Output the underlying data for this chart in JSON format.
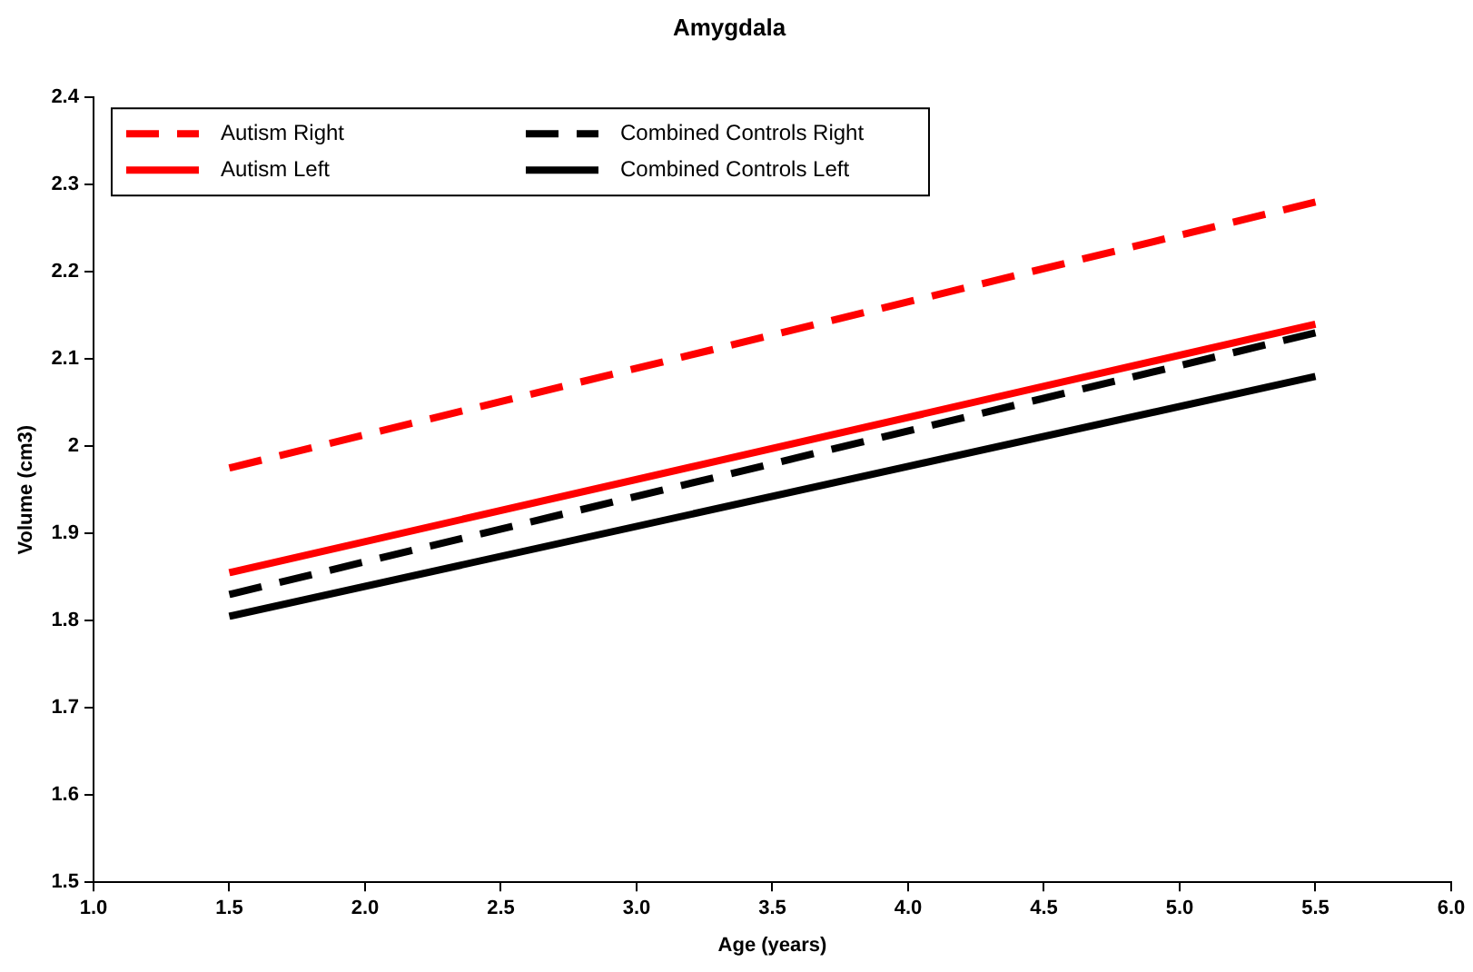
{
  "chart_data": {
    "type": "line",
    "title": "Amygdala",
    "xlabel": "Age (years)",
    "ylabel": "Volume (cm3)",
    "x": [
      1.5,
      5.5
    ],
    "series": [
      {
        "name": "Autism Right",
        "color": "#ff0000",
        "line_style": "dashed",
        "values": [
          1.975,
          2.28
        ]
      },
      {
        "name": "Combined Controls Right",
        "color": "#000000",
        "line_style": "dashed",
        "values": [
          1.83,
          2.13
        ]
      },
      {
        "name": "Autism Left",
        "color": "#ff0000",
        "line_style": "solid",
        "values": [
          1.855,
          2.14
        ]
      },
      {
        "name": "Combined Controls Left",
        "color": "#000000",
        "line_style": "solid",
        "values": [
          1.805,
          2.08
        ]
      }
    ],
    "xlim": [
      1.0,
      6.0
    ],
    "xticks": [
      {
        "value": 1,
        "label": "1.0"
      },
      1.5,
      {
        "value": 2,
        "label": "2.0"
      },
      2.5,
      {
        "value": 3,
        "label": "3.0"
      },
      3.5,
      {
        "value": 4,
        "label": "4.0"
      },
      4.5,
      {
        "value": 5,
        "label": "5.0"
      },
      5.5,
      {
        "value": 6,
        "label": "6.0"
      }
    ],
    "ylim": [
      1.5,
      2.4
    ],
    "yticks": [
      1.5,
      1.6,
      1.7,
      1.8,
      1.9,
      2,
      2.1,
      2.2,
      2.3,
      2.4
    ],
    "grid": false,
    "legend": "top left",
    "marker": "none"
  }
}
